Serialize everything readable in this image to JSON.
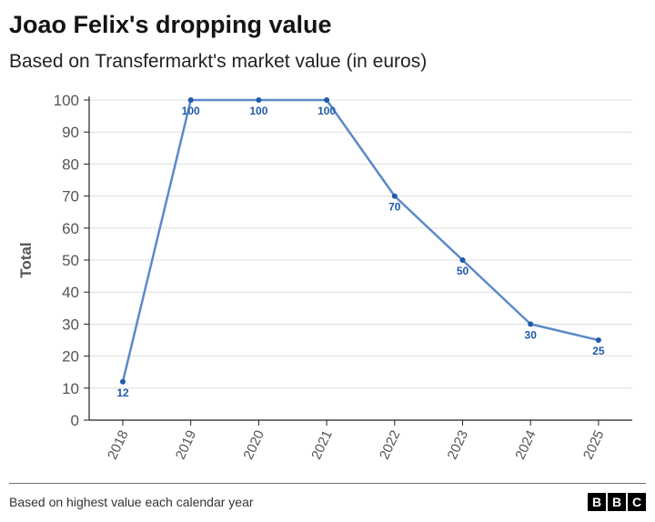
{
  "header": {
    "title": "Joao Felix's dropping value",
    "subtitle": "Based on Transfermarkt's market value (in euros)"
  },
  "footer": {
    "source": "Based on highest value each calendar year",
    "logo": [
      "B",
      "B",
      "C"
    ]
  },
  "chart_data": {
    "type": "line",
    "title": "Joao Felix's dropping value",
    "subtitle": "Based on Transfermarkt's market value (in euros)",
    "xlabel": "",
    "ylabel": "Total",
    "categories": [
      "2018",
      "2019",
      "2020",
      "2021",
      "2022",
      "2023",
      "2024",
      "2025"
    ],
    "series": [
      {
        "values": [
          12,
          100,
          100,
          100,
          70,
          50,
          30,
          25
        ]
      }
    ],
    "data_labels": [
      "12",
      "100",
      "100",
      "100",
      "70",
      "50",
      "30",
      "25"
    ],
    "ylim": [
      0,
      100
    ],
    "yticks": [
      0,
      10,
      20,
      30,
      40,
      50,
      60,
      70,
      80,
      90,
      100
    ],
    "grid": true,
    "legend": "none",
    "colors": {
      "line": "#5b8ac9",
      "marker": "#1f5ba8",
      "label": "#1f5ba8",
      "grid": "#dddddd",
      "axis": "#222222"
    }
  }
}
